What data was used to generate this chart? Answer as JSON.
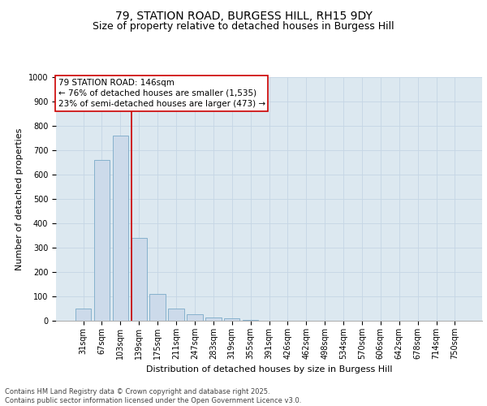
{
  "title1": "79, STATION ROAD, BURGESS HILL, RH15 9DY",
  "title2": "Size of property relative to detached houses in Burgess Hill",
  "xlabel": "Distribution of detached houses by size in Burgess Hill",
  "ylabel": "Number of detached properties",
  "categories": [
    "31sqm",
    "67sqm",
    "103sqm",
    "139sqm",
    "175sqm",
    "211sqm",
    "247sqm",
    "283sqm",
    "319sqm",
    "355sqm",
    "391sqm",
    "426sqm",
    "462sqm",
    "498sqm",
    "534sqm",
    "570sqm",
    "606sqm",
    "642sqm",
    "678sqm",
    "714sqm",
    "750sqm"
  ],
  "values": [
    50,
    660,
    760,
    340,
    110,
    50,
    28,
    15,
    10,
    5,
    0,
    0,
    0,
    0,
    0,
    0,
    0,
    0,
    0,
    0,
    0
  ],
  "bar_color": "#ccdaea",
  "bar_edge_color": "#7aaac8",
  "vline_color": "#cc0000",
  "annotation_line1": "79 STATION ROAD: 146sqm",
  "annotation_line2": "← 76% of detached houses are smaller (1,535)",
  "annotation_line3": "23% of semi-detached houses are larger (473) →",
  "annotation_box_facecolor": "#ffffff",
  "annotation_box_edgecolor": "#cc0000",
  "ylim": [
    0,
    1000
  ],
  "yticks": [
    0,
    100,
    200,
    300,
    400,
    500,
    600,
    700,
    800,
    900,
    1000
  ],
  "grid_color": "#c5d5e5",
  "bg_color": "#dce8f0",
  "footer": "Contains HM Land Registry data © Crown copyright and database right 2025.\nContains public sector information licensed under the Open Government Licence v3.0.",
  "title1_fontsize": 10,
  "title2_fontsize": 9,
  "ylabel_fontsize": 8,
  "xlabel_fontsize": 8,
  "tick_fontsize": 7,
  "annotation_fontsize": 7.5,
  "footer_fontsize": 6.0
}
